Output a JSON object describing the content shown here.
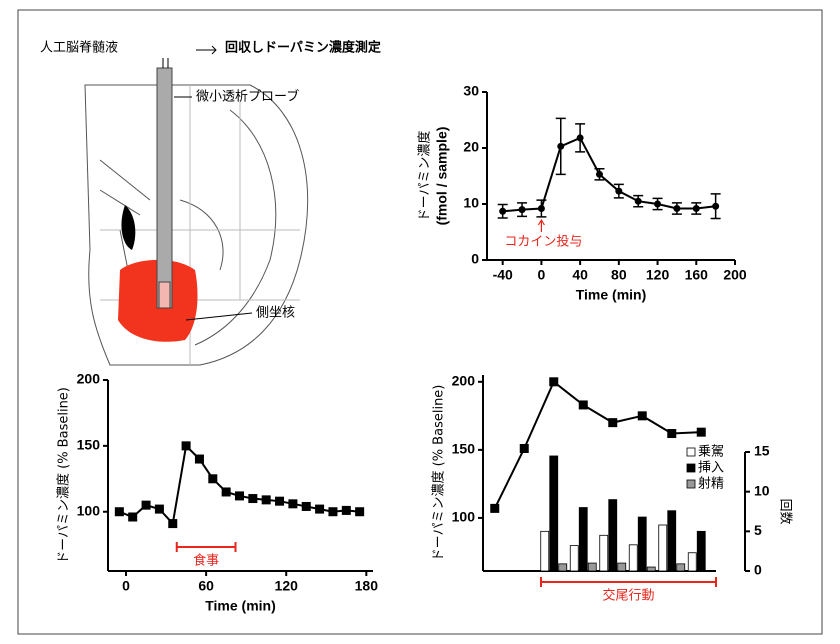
{
  "diagram": {
    "labels": [
      "人工脳脊髄液",
      "回収しドーパミン濃度測定",
      "微小透析プローブ",
      "側坐核"
    ]
  },
  "chart_data": [
    {
      "type": "line",
      "x": [
        -40,
        -20,
        0,
        20,
        40,
        60,
        80,
        100,
        120,
        140,
        160,
        180
      ],
      "series": [
        {
          "color": "#000000",
          "marker": "circle",
          "values": [
            8.7,
            9,
            9.2,
            20.3,
            21.8,
            15.3,
            12.3,
            10.5,
            10,
            9.2,
            9.2,
            9.6
          ],
          "errors": [
            1.2,
            1.2,
            1.5,
            5,
            2.5,
            1,
            1.2,
            1,
            1,
            1,
            1,
            2.2
          ]
        }
      ],
      "xlim": [
        -50,
        200
      ],
      "xticks": [
        -40,
        0,
        40,
        80,
        120,
        160,
        200
      ],
      "ylim": [
        0,
        30
      ],
      "yticks": [
        0,
        10,
        20,
        30
      ],
      "ylabel": [
        "ドーパミン濃度",
        "(fmol / sample)"
      ],
      "xlabel": "Time (min)",
      "annotations": [
        {
          "text": "コカイン投与",
          "x": 0,
          "color": "#e8261c"
        }
      ]
    },
    {
      "type": "line",
      "x": [
        -5,
        5,
        15,
        25,
        35,
        45,
        55,
        65,
        75,
        85,
        95,
        105,
        115,
        125,
        135,
        145,
        155,
        165,
        175
      ],
      "series": [
        {
          "color": "#000000",
          "marker": "square",
          "values": [
            100,
            96,
            105,
            102,
            91,
            150,
            140,
            125,
            115,
            112,
            110,
            109,
            108,
            106,
            104,
            102,
            100,
            101,
            100
          ]
        }
      ],
      "xlim": [
        -15,
        185
      ],
      "xticks": [
        0,
        60,
        120,
        180
      ],
      "ylim": [
        55,
        200
      ],
      "yticks": [
        100,
        150,
        200
      ],
      "ylabel": "ドーパミン濃度 (% Baseline)",
      "xlabel": "Time (min)",
      "annotations": [
        {
          "text": "食事",
          "x": [
            38,
            82
          ],
          "color": "#e8261c"
        }
      ]
    },
    {
      "type": "bar",
      "categories": [
        null,
        null,
        null,
        null,
        null,
        null,
        null,
        null
      ],
      "series": [
        {
          "type": "line",
          "color": "#000000",
          "marker": "square",
          "values": [
            107,
            151,
            200,
            183,
            170,
            175,
            162,
            163
          ]
        },
        {
          "name": "乗駕",
          "color": "#ffffff",
          "axis": "y2",
          "values": [
            null,
            null,
            5,
            3.2,
            4.5,
            3.3,
            5.8,
            2.3
          ]
        },
        {
          "name": "挿入",
          "color": "#000000",
          "axis": "y2",
          "values": [
            null,
            null,
            14.5,
            8,
            9,
            6.8,
            7.6,
            5
          ]
        },
        {
          "name": "射精",
          "color": "#999999",
          "axis": "y2",
          "values": [
            null,
            null,
            0.9,
            1,
            1,
            0.5,
            0.9,
            0
          ]
        }
      ],
      "ylim": [
        61,
        205
      ],
      "yticks": [
        100,
        150,
        200
      ],
      "y2lim": [
        0,
        15
      ],
      "y2ticks": [
        0,
        5,
        10,
        15
      ],
      "ylabel": "ドーパミン濃度 (% Baseline)",
      "y2label": "回数",
      "legend": "upper right",
      "annotations": [
        {
          "text": "交尾行動",
          "color": "#e8261c"
        }
      ]
    }
  ]
}
